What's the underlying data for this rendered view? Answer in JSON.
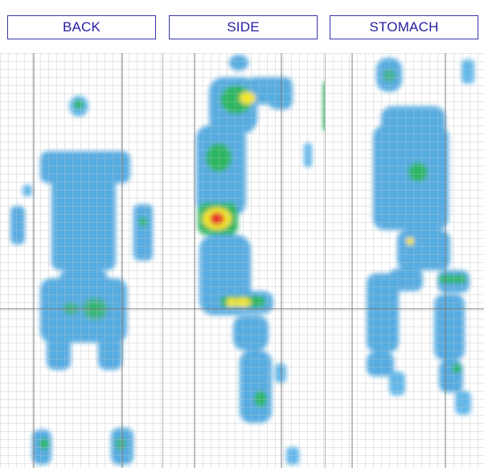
{
  "tabs": {
    "back": "BACK",
    "side": "SIDE",
    "stomach": "STOMACH"
  },
  "colors": {
    "accent": "#241d9e",
    "low": "#5ab4e8",
    "mid": "#22b35a",
    "high": "#f3e61d",
    "peak": "#e52a1d"
  }
}
